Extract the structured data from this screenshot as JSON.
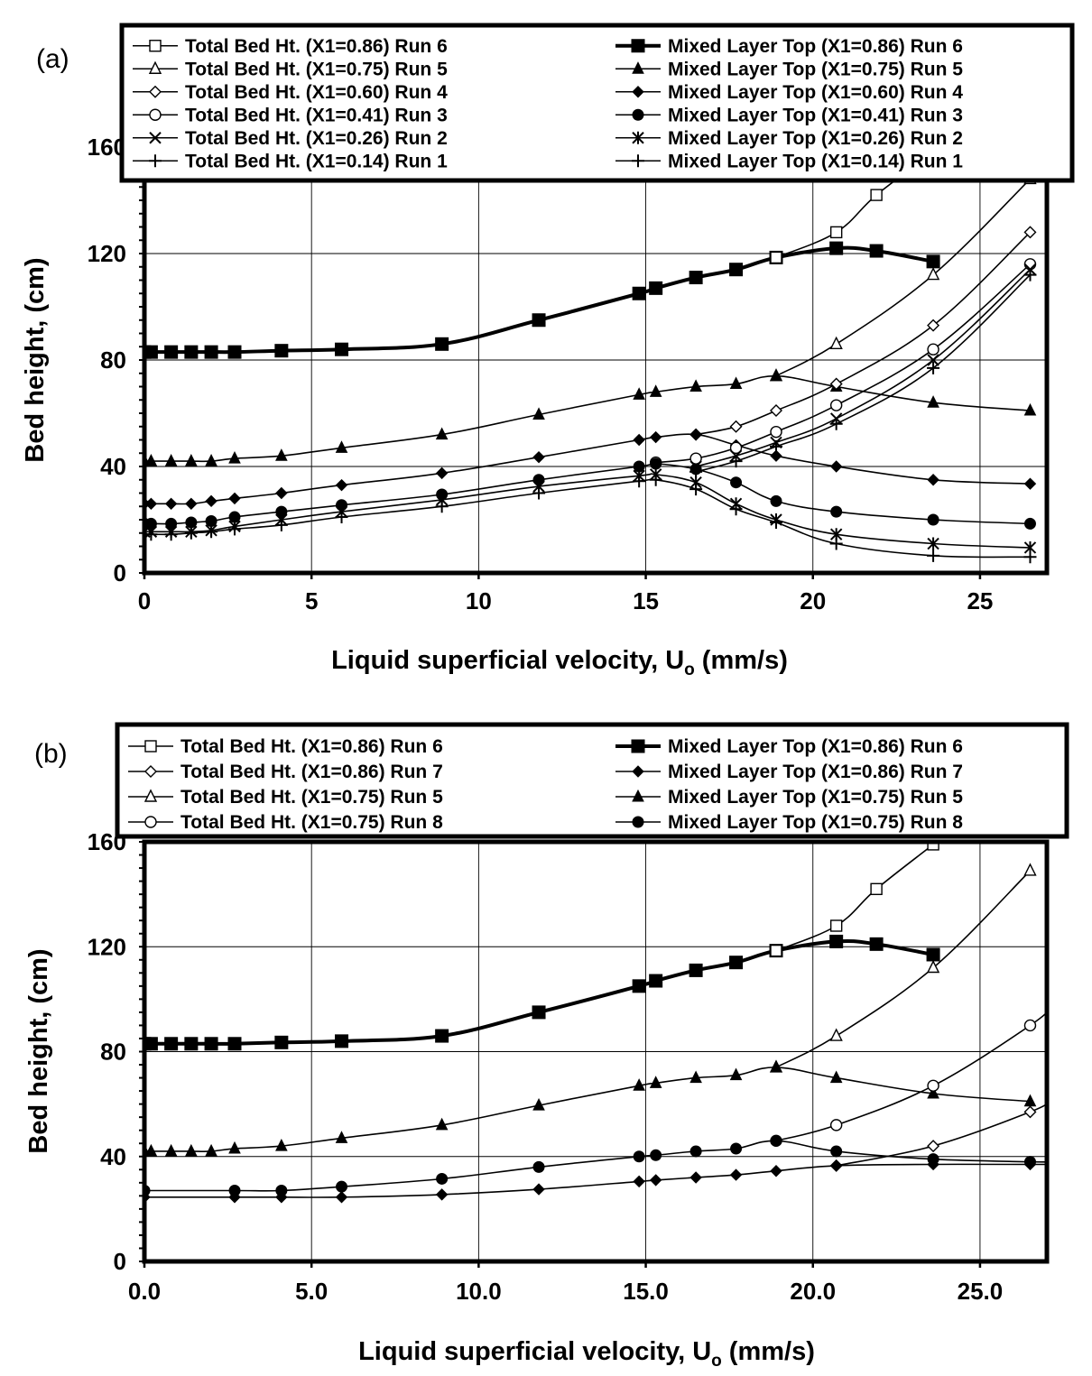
{
  "chart_data": [
    {
      "id": "a",
      "type": "line",
      "panel_label": "(a)",
      "ylabel": "Bed height, (cm)",
      "xlabel": "Liquid superficial velocity, U",
      "xlabel_sub": "o",
      "xlabel_suffix": " (mm/s)",
      "xlim": [
        0,
        27
      ],
      "ylim": [
        0,
        160
      ],
      "xticks": [
        0,
        5,
        10,
        15,
        20,
        25
      ],
      "xtick_labels": [
        "0",
        "5",
        "10",
        "15",
        "20",
        "25"
      ],
      "yticks": [
        0,
        40,
        80,
        120,
        160
      ],
      "ytick_labels": [
        "0",
        "40",
        "80",
        "120",
        "160"
      ],
      "grid": true,
      "legend": "top, two columns",
      "legend_left": [
        "Total Bed Ht. (X1=0.86) Run 6",
        "Total Bed Ht. (X1=0.75) Run 5",
        "Total Bed Ht. (X1=0.60) Run 4",
        "Total Bed Ht. (X1=0.41) Run 3",
        "Total Bed Ht. (X1=0.26) Run 2",
        "Total Bed Ht. (X1=0.14) Run 1"
      ],
      "legend_right": [
        "Mixed Layer Top (X1=0.86) Run 6",
        "Mixed Layer Top (X1=0.75) Run 5",
        "Mixed Layer Top (X1=0.60) Run 4",
        "Mixed Layer Top (X1=0.41) Run 3",
        "Mixed Layer Top (X1=0.26) Run 2",
        "Mixed Layer Top (X1=0.14) Run 1"
      ],
      "series": [
        {
          "name": "Mixed Layer Top (X1=0.86) Run 6",
          "marker": "square-filled",
          "bold": true,
          "x": [
            0,
            0.2,
            0.8,
            1.4,
            2.0,
            2.7,
            4.1,
            5.9,
            8.9,
            11.8,
            14.8,
            15.3,
            16.5,
            17.7,
            18.9,
            20.7,
            21.9,
            23.6
          ],
          "y": [
            83,
            83,
            83,
            83,
            83,
            83,
            83.5,
            84,
            86,
            95,
            105,
            107,
            111,
            114,
            118.5,
            122,
            121,
            117
          ]
        },
        {
          "name": "Total Bed Ht. (X1=0.86) Run 6",
          "marker": "square-open",
          "bold": false,
          "x": [
            18.9,
            20.7,
            21.9,
            23.6
          ],
          "y": [
            118.5,
            128,
            142,
            158
          ]
        },
        {
          "name": "Total Bed Ht. (X1=0.75) Run 5",
          "marker": "triangle-open",
          "bold": false,
          "x": [
            18.9,
            20.7,
            23.6,
            26.5
          ],
          "y": [
            74,
            86,
            112,
            148
          ]
        },
        {
          "name": "Mixed Layer Top (X1=0.75) Run 5",
          "marker": "triangle-filled",
          "bold": false,
          "x": [
            0,
            0.2,
            0.8,
            1.4,
            2.0,
            2.7,
            4.1,
            5.9,
            8.9,
            11.8,
            14.8,
            15.3,
            16.5,
            17.7,
            18.9,
            20.7,
            23.6,
            26.5
          ],
          "y": [
            42,
            42,
            42,
            42,
            42,
            43,
            44,
            47,
            52,
            59.5,
            67,
            68,
            70,
            71,
            74,
            70,
            64,
            61
          ]
        },
        {
          "name": "Total Bed Ht. (X1=0.60) Run 4",
          "marker": "diamond-open",
          "bold": false,
          "x": [
            16.5,
            17.7,
            18.9,
            20.7,
            23.6,
            26.5
          ],
          "y": [
            52,
            55,
            61,
            71,
            93,
            128
          ]
        },
        {
          "name": "Mixed Layer Top (X1=0.60) Run 4",
          "marker": "diamond-filled",
          "bold": false,
          "x": [
            0,
            0.2,
            0.8,
            1.4,
            2.0,
            2.7,
            4.1,
            5.9,
            8.9,
            11.8,
            14.8,
            15.3,
            16.5,
            17.7,
            18.9,
            20.7,
            23.6,
            26.5
          ],
          "y": [
            26,
            26,
            26,
            26,
            27,
            28,
            30,
            33,
            37.5,
            43.5,
            50,
            51,
            52,
            48,
            44,
            40,
            35,
            33.5
          ]
        },
        {
          "name": "Total Bed Ht. (X1=0.41) Run 3",
          "marker": "circle-open",
          "bold": false,
          "x": [
            15.3,
            16.5,
            17.7,
            18.9,
            20.7,
            23.6,
            26.5
          ],
          "y": [
            41.5,
            43,
            47,
            53,
            63,
            84,
            116
          ]
        },
        {
          "name": "Mixed Layer Top (X1=0.41) Run 3",
          "marker": "circle-filled",
          "bold": false,
          "x": [
            0,
            0.2,
            0.8,
            1.4,
            2.0,
            2.7,
            4.1,
            5.9,
            8.9,
            11.8,
            14.8,
            15.3,
            16.5,
            17.7,
            18.9,
            20.7,
            23.6,
            26.5
          ],
          "y": [
            18.5,
            18.5,
            18.5,
            19,
            19.5,
            21,
            23,
            25.5,
            29.5,
            35,
            40,
            41,
            39,
            34,
            27,
            23,
            20,
            18.5
          ]
        },
        {
          "name": "Total Bed Ht. (X1=0.26) Run 2",
          "marker": "x",
          "bold": false,
          "x": [
            16.5,
            17.7,
            18.9,
            20.7,
            23.6,
            26.5
          ],
          "y": [
            40,
            44,
            49,
            58,
            80,
            114
          ]
        },
        {
          "name": "Mixed Layer Top (X1=0.26) Run 2",
          "marker": "asterisk",
          "bold": false,
          "x": [
            0,
            0.2,
            0.8,
            1.4,
            2.0,
            2.7,
            4.1,
            5.9,
            8.9,
            11.8,
            14.8,
            15.3,
            16.5,
            17.7,
            18.9,
            20.7,
            23.6,
            26.5
          ],
          "y": [
            15.5,
            15.5,
            15.5,
            15.5,
            16,
            17.5,
            20,
            23,
            27.5,
            32.5,
            36.5,
            37,
            34,
            26,
            20,
            14.5,
            11,
            9.5
          ]
        },
        {
          "name": "Total Bed Ht. (X1=0.14) Run 1",
          "marker": "plus",
          "bold": false,
          "x": [
            16.5,
            17.7,
            18.9,
            20.7,
            23.6,
            26.5
          ],
          "y": [
            38,
            42,
            47.5,
            56,
            77,
            112
          ]
        },
        {
          "name": "Mixed Layer Top (X1=0.14) Run 1",
          "marker": "plus",
          "bold": false,
          "x": [
            0,
            0.2,
            0.8,
            1.4,
            2.0,
            2.7,
            4.1,
            5.9,
            8.9,
            11.8,
            14.8,
            15.3,
            16.5,
            17.7,
            18.9,
            20.7,
            23.6,
            26.5
          ],
          "y": [
            14.5,
            14.5,
            14.5,
            15,
            15.5,
            16.5,
            18,
            21,
            25,
            30,
            34.5,
            35,
            31.5,
            24,
            19,
            11,
            6.5,
            6
          ]
        }
      ]
    },
    {
      "id": "b",
      "type": "line",
      "panel_label": "(b)",
      "ylabel": "Bed height, (cm)",
      "xlabel": "Liquid superficial velocity, U",
      "xlabel_sub": "o",
      "xlabel_suffix": " (mm/s)",
      "xlim": [
        0,
        27
      ],
      "ylim": [
        0,
        160
      ],
      "xticks": [
        0,
        5,
        10,
        15,
        20,
        25
      ],
      "xtick_labels": [
        "0.0",
        "5.0",
        "10.0",
        "15.0",
        "20.0",
        "25.0"
      ],
      "yticks": [
        0,
        40,
        80,
        120,
        160
      ],
      "ytick_labels": [
        "0",
        "40",
        "80",
        "120",
        "160"
      ],
      "grid": true,
      "legend": "top, two columns",
      "legend_left": [
        "Total Bed Ht. (X1=0.86) Run 6",
        "Total Bed Ht. (X1=0.86) Run 7",
        "Total Bed Ht. (X1=0.75) Run 5",
        "Total Bed Ht. (X1=0.75) Run 8"
      ],
      "legend_right": [
        "Mixed Layer Top (X1=0.86) Run 6",
        "Mixed Layer Top (X1=0.86) Run 7",
        "Mixed Layer Top (X1=0.75) Run 5",
        "Mixed Layer Top (X1=0.75) Run 8"
      ],
      "series": [
        {
          "name": "Mixed Layer Top (X1=0.86) Run 6",
          "marker": "square-filled",
          "bold": true,
          "x": [
            0,
            0.2,
            0.8,
            1.4,
            2.0,
            2.7,
            4.1,
            5.9,
            8.9,
            11.8,
            14.8,
            15.3,
            16.5,
            17.7,
            18.9,
            20.7,
            21.9,
            23.6
          ],
          "y": [
            83,
            83,
            83,
            83,
            83,
            83,
            83.5,
            84,
            86,
            95,
            105,
            107,
            111,
            114,
            118.5,
            122,
            121,
            117
          ]
        },
        {
          "name": "Total Bed Ht. (X1=0.86) Run 6",
          "marker": "square-open",
          "bold": false,
          "x": [
            18.9,
            20.7,
            21.9,
            23.6
          ],
          "y": [
            118.5,
            128,
            142,
            159
          ]
        },
        {
          "name": "Total Bed Ht. (X1=0.75) Run 5",
          "marker": "triangle-open",
          "bold": false,
          "x": [
            18.9,
            20.7,
            23.6,
            26.5
          ],
          "y": [
            74,
            86,
            112,
            149
          ]
        },
        {
          "name": "Mixed Layer Top (X1=0.75) Run 5",
          "marker": "triangle-filled",
          "bold": false,
          "x": [
            0,
            0.2,
            0.8,
            1.4,
            2.0,
            2.7,
            4.1,
            5.9,
            8.9,
            11.8,
            14.8,
            15.3,
            16.5,
            17.7,
            18.9,
            20.7,
            23.6,
            26.5
          ],
          "y": [
            42,
            42,
            42,
            42,
            42,
            43,
            44,
            47,
            52,
            59.5,
            67,
            68,
            70,
            71,
            74,
            70,
            64,
            61
          ]
        },
        {
          "name": "Total Bed Ht. (X1=0.75) Run 8",
          "marker": "circle-open",
          "bold": false,
          "x": [
            18.9,
            20.7,
            23.6,
            26.5,
            27.2
          ],
          "y": [
            46,
            52,
            67,
            90,
            98
          ]
        },
        {
          "name": "Mixed Layer Top (X1=0.75) Run 8",
          "marker": "circle-filled",
          "bold": false,
          "x": [
            0,
            2.7,
            4.1,
            5.9,
            8.9,
            11.8,
            14.8,
            15.3,
            16.5,
            17.7,
            18.9,
            20.7,
            23.6,
            26.5,
            27.2
          ],
          "y": [
            27,
            27,
            27,
            28.5,
            31.5,
            36,
            40,
            40.5,
            42,
            43,
            46,
            42,
            39,
            38,
            38
          ]
        },
        {
          "name": "Total Bed Ht. (X1=0.86) Run 7",
          "marker": "diamond-open",
          "bold": false,
          "x": [
            20.7,
            23.6,
            26.5,
            27.2
          ],
          "y": [
            36.5,
            44,
            57,
            62
          ]
        },
        {
          "name": "Mixed Layer Top (X1=0.86) Run 7",
          "marker": "diamond-filled",
          "bold": false,
          "x": [
            0,
            2.7,
            4.1,
            5.9,
            8.9,
            11.8,
            14.8,
            15.3,
            16.5,
            17.7,
            18.9,
            20.7,
            23.6,
            26.5,
            27.2
          ],
          "y": [
            24.5,
            24.5,
            24.5,
            24.5,
            25.5,
            27.5,
            30.5,
            31,
            32,
            33,
            34.5,
            36.5,
            37,
            37,
            37
          ]
        }
      ]
    }
  ]
}
